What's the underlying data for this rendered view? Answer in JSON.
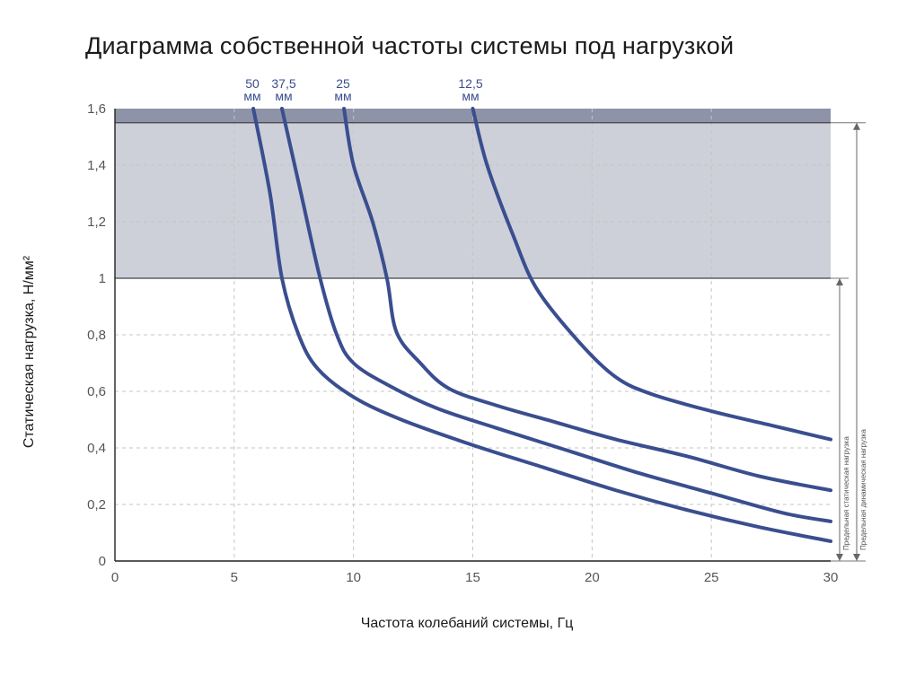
{
  "chart_data": {
    "type": "line",
    "title": "Диаграмма собственной частоты системы под нагрузкой",
    "xlabel": "Частота колебаний системы, Гц",
    "ylabel": "Статическая нагрузка, Н/мм²",
    "xlim": [
      0,
      30
    ],
    "ylim": [
      0,
      1.6
    ],
    "x_ticks": [
      "0",
      "5",
      "10",
      "15",
      "20",
      "25",
      "30"
    ],
    "y_ticks": [
      "0",
      "0,2",
      "0,4",
      "0,6",
      "0,8",
      "1",
      "1,2",
      "1,4",
      "1,6"
    ],
    "grid": "dashed",
    "zones": [
      {
        "from": 1.0,
        "to": 1.55,
        "color": "#cdd0d9"
      },
      {
        "from": 1.55,
        "to": 1.6,
        "color": "#8e93a8"
      }
    ],
    "range_annotations": [
      {
        "label": "Предельная статическая нагрузка",
        "from": 0,
        "to": 1.0
      },
      {
        "label": "Предельная динамическая нагрузка",
        "from": 0,
        "to": 1.55
      }
    ],
    "series_color": "#3a4e8f",
    "series": [
      {
        "name": "50",
        "unit": "мм",
        "x": [
          5.8,
          6.5,
          7.0,
          7.7,
          8.5,
          10.0,
          12.0,
          15.0,
          18.0,
          21.0,
          24.0,
          27.0,
          30.0
        ],
        "y": [
          1.6,
          1.3,
          1.0,
          0.8,
          0.68,
          0.58,
          0.5,
          0.41,
          0.33,
          0.25,
          0.18,
          0.12,
          0.07
        ]
      },
      {
        "name": "37,5",
        "unit": "мм",
        "x": [
          7.0,
          7.8,
          8.6,
          9.3,
          10.0,
          11.5,
          13.5,
          16.0,
          19.0,
          22.0,
          25.0,
          28.0,
          30.0
        ],
        "y": [
          1.6,
          1.3,
          1.0,
          0.8,
          0.7,
          0.62,
          0.54,
          0.47,
          0.39,
          0.31,
          0.24,
          0.17,
          0.14
        ]
      },
      {
        "name": "25",
        "unit": "мм",
        "x": [
          9.6,
          10.0,
          10.8,
          11.4,
          11.8,
          12.8,
          14.0,
          16.0,
          18.5,
          21.0,
          24.0,
          27.0,
          30.0
        ],
        "y": [
          1.6,
          1.4,
          1.2,
          1.0,
          0.81,
          0.7,
          0.61,
          0.55,
          0.49,
          0.43,
          0.37,
          0.3,
          0.25
        ]
      },
      {
        "name": "12,5",
        "unit": "мм",
        "x": [
          15.0,
          15.6,
          16.7,
          17.7,
          19.5,
          21.0,
          22.5,
          25.0,
          27.5,
          30.0
        ],
        "y": [
          1.6,
          1.4,
          1.15,
          0.96,
          0.77,
          0.65,
          0.59,
          0.53,
          0.48,
          0.43
        ]
      }
    ]
  }
}
